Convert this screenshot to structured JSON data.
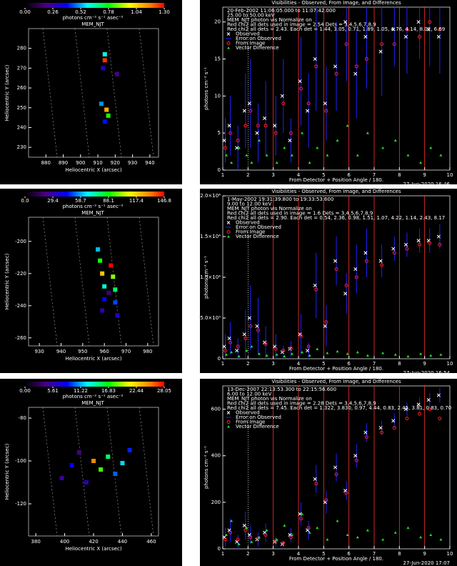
{
  "chart_data": [
    {
      "type": "heatmap",
      "title": "MEM_NJT",
      "colorbar_label": "photons cm⁻² s⁻¹ asec⁻²",
      "clim": [
        0,
        1.3
      ],
      "cticks": [
        {
          "value": 0,
          "label": "0.00"
        },
        {
          "value": 0.26,
          "label": "0.26"
        },
        {
          "value": 0.52,
          "label": "0.52"
        },
        {
          "value": 0.78,
          "label": "0.78"
        },
        {
          "value": 1.04,
          "label": "1.04"
        },
        {
          "value": 1.3,
          "label": "1.30"
        }
      ],
      "xlabel": "Heliocentric X (arcsec)",
      "ylabel": "Heliocentric Y (arcsec)",
      "xlim": [
        870,
        945
      ],
      "xticks": [
        880,
        890,
        900,
        910,
        920,
        930,
        940
      ],
      "ylim": [
        225,
        290
      ],
      "yticks": [
        230,
        240,
        250,
        260,
        270,
        280
      ],
      "x": [
        914,
        914,
        913,
        915,
        916,
        914,
        912,
        921
      ],
      "y": [
        274,
        277,
        270,
        249,
        246,
        243,
        252,
        267
      ],
      "values": [
        1.25,
        0.6,
        0.3,
        1.1,
        0.8,
        0.4,
        0.5,
        0.2
      ]
    },
    {
      "type": "scatter",
      "title": "Visibilities - Observed, From Image, and Differences",
      "annotations": [
        "20-Feb-2002 11:06:05.000 to 11:07:42.000",
        "25.00 to 50.00 keV",
        "MEM_NJT photon vis     Normalize on",
        "Red chi2 all dets used in image = 2.54   Dets = 3,4,5,6,7,8,9",
        "Red chi2 all dets = 2.43.   Each det = 1.44, 3.05, 0.71, 1.89, 1.05, 4.76, 4.14, 8.01, 6.69"
      ],
      "xlabel": "From Detector + Position Angle / 180.",
      "ylabel": "photons cm⁻² s⁻¹",
      "footer": "27-Jun-2020 16:46",
      "xlim": [
        1,
        10
      ],
      "xticks": [
        1,
        2,
        3,
        4,
        5,
        6,
        7,
        8,
        9,
        10
      ],
      "ylim": [
        0,
        22
      ],
      "yticks": [
        0,
        5,
        10,
        15,
        20
      ],
      "vlines": [
        3,
        4,
        5,
        6,
        7,
        8,
        9
      ],
      "vline_color": "#ff3030",
      "dotted_x": 2,
      "x": [
        1.1,
        1.3,
        1.6,
        1.9,
        2.1,
        2.4,
        2.7,
        3.1,
        3.4,
        3.7,
        4.1,
        4.4,
        4.7,
        5.1,
        5.5,
        5.9,
        6.3,
        6.7,
        7.3,
        7.8,
        8.3,
        8.8,
        9.2,
        9.6
      ],
      "series": [
        {
          "name": "Observed",
          "color": "#ffffff",
          "error_name": "Error on Observed",
          "error_color": "#2020ff",
          "values": [
            4,
            6,
            3,
            8,
            9,
            5,
            7,
            6,
            10,
            4,
            12,
            8,
            15,
            9,
            14,
            20,
            13,
            18,
            16,
            19,
            18,
            20,
            19,
            18
          ],
          "errors": [
            3,
            4,
            3,
            5,
            6,
            4,
            5,
            4,
            5,
            3,
            6,
            5,
            7,
            5,
            6,
            8,
            6,
            7,
            6,
            5,
            5,
            5,
            5,
            5
          ]
        },
        {
          "name": "From Image",
          "color": "#ff2020",
          "values": [
            3,
            5,
            4,
            6,
            8,
            6,
            6,
            5,
            9,
            5,
            11,
            9,
            14,
            8,
            13,
            17,
            14,
            15,
            17,
            17,
            19,
            18,
            20,
            19
          ]
        },
        {
          "name": "Vector Difference",
          "color": "#20e020",
          "values": [
            2,
            1,
            3,
            2,
            1,
            4,
            2,
            1,
            3,
            2,
            5,
            1,
            3,
            2,
            4,
            6,
            2,
            5,
            3,
            4,
            2,
            1,
            3,
            2
          ]
        }
      ]
    },
    {
      "type": "heatmap",
      "title": "MEM_NJT",
      "colorbar_label": "photons cm⁻² s⁻¹ asec⁻²",
      "clim": [
        0,
        146.8
      ],
      "cticks": [
        {
          "value": 0,
          "label": "0.0"
        },
        29.4,
        58.7,
        88.1,
        117.4,
        146.8
      ],
      "xlabel": "Heliocentric X (arcsec)",
      "ylabel": "Heliocentric Y (arcsec)",
      "xlim": [
        925,
        985
      ],
      "xticks": [
        930,
        940,
        950,
        960,
        970,
        980
      ],
      "ylim": [
        -265,
        -185
      ],
      "yticks": [
        -260,
        -240,
        -220,
        -200
      ],
      "x": [
        957,
        958,
        959,
        960,
        960,
        959,
        963,
        964,
        965,
        965,
        966,
        962
      ],
      "y": [
        -205,
        -212,
        -220,
        -228,
        -236,
        -243,
        -215,
        -222,
        -230,
        -238,
        -246,
        -232
      ],
      "values": [
        60,
        90,
        120,
        70,
        40,
        30,
        146.8,
        100,
        80,
        50,
        35,
        20
      ]
    },
    {
      "type": "scatter",
      "title": "Visibilities - Observed, From Image, and Differences",
      "annotations": [
        "1-May-2002 19:31:39.800 to 19:33:53.600",
        "9.00 to 12.00 keV",
        "MEM_NJT photon vis     Normalize on",
        "Red chi2 all dets used in image = 1.6   Dets = 3,4,5,6,7,8,9",
        "Red chi2 all dets = 2.90.   Each det = 0.54, 2.36, 0.98, 1.51, 1.07, 4.22, 1.14, 2.43, 8.17"
      ],
      "xlabel": "From Detector + Position Angle / 180.",
      "ylabel": "photons cm⁻² s⁻¹",
      "footer": "27-Jun-2020 16:54",
      "xlim": [
        1,
        10
      ],
      "xticks": [
        1,
        2,
        3,
        4,
        5,
        6,
        7,
        8,
        9,
        10
      ],
      "ylim": [
        0,
        20000
      ],
      "yticks": [
        0,
        {
          "value": 5000,
          "label": "5.0×10³"
        },
        {
          "value": 10000,
          "label": "1.0×10⁴"
        },
        {
          "value": 15000,
          "label": "1.5×10⁴"
        },
        {
          "value": 20000,
          "label": "2.0×10⁴"
        }
      ],
      "vlines": [
        3,
        4,
        5,
        6,
        7,
        8,
        9
      ],
      "vline_color": "#ff3030",
      "dotted_x": 2,
      "x": [
        1.1,
        1.3,
        1.6,
        1.9,
        2.1,
        2.4,
        2.7,
        3.1,
        3.4,
        3.7,
        4.1,
        4.4,
        4.7,
        5.1,
        5.5,
        5.9,
        6.3,
        6.7,
        7.3,
        7.8,
        8.3,
        8.8,
        9.2,
        9.6
      ],
      "series": [
        {
          "name": "Observed",
          "color": "#ffffff",
          "error_name": "Error on Observed",
          "error_color": "#2020ff",
          "values": [
            1500,
            2500,
            1000,
            3000,
            5000,
            4000,
            2000,
            1500,
            800,
            1200,
            3000,
            1000,
            9000,
            4000,
            12000,
            8000,
            11000,
            13000,
            12000,
            13500,
            14000,
            14500,
            14500,
            15000
          ],
          "errors": [
            1500,
            2000,
            1500,
            3000,
            4000,
            3500,
            2000,
            1500,
            800,
            1000,
            2500,
            1000,
            4000,
            2500,
            3000,
            2500,
            3000,
            3000,
            2000,
            1500,
            1500,
            1500,
            1500,
            1500
          ]
        },
        {
          "name": "From Image",
          "color": "#ff2020",
          "values": [
            1000,
            2000,
            1500,
            2500,
            4000,
            3500,
            1800,
            1200,
            1000,
            1300,
            2800,
            1500,
            8500,
            4500,
            11000,
            9000,
            10000,
            12000,
            11500,
            13000,
            13500,
            14000,
            14200,
            14000
          ]
        },
        {
          "name": "Vector Difference",
          "color": "#20e020",
          "values": [
            500,
            800,
            300,
            1000,
            1500,
            600,
            400,
            500,
            300,
            600,
            800,
            400,
            1200,
            700,
            900,
            600,
            800,
            400,
            700,
            500,
            300,
            600,
            400,
            500
          ]
        }
      ]
    },
    {
      "type": "heatmap",
      "title": "MEM_NJT",
      "colorbar_label": "photons cm⁻² s⁻¹ asec⁻²",
      "clim": [
        0,
        28.05
      ],
      "cticks": [
        {
          "value": 0,
          "label": "0.00"
        },
        5.61,
        11.22,
        16.83,
        22.44,
        28.05
      ],
      "xlabel": "Heliocentric X (arcsec)",
      "ylabel": "Heliocentric Y (arcsec)",
      "xlim": [
        375,
        465
      ],
      "xticks": [
        380,
        400,
        420,
        440,
        460
      ],
      "ylim": [
        -135,
        -75
      ],
      "yticks": [
        -80,
        -100,
        -120
      ],
      "x": [
        420,
        405,
        430,
        440,
        398,
        415,
        435,
        445,
        425,
        410
      ],
      "y": [
        -100,
        -102,
        -98,
        -101,
        -108,
        -110,
        -106,
        -95,
        -104,
        -96
      ],
      "values": [
        25,
        8,
        15,
        12,
        5,
        6,
        10,
        9,
        18,
        4
      ]
    },
    {
      "type": "scatter",
      "title": "Visibilities - Observed, From Image, and Differences",
      "annotations": [
        "13-Dec-2007 22:13:53.300 to 22:15:56.600",
        "6.00 to 12.00 keV",
        "MEM_NJT photon vis     Normalize on",
        "Red chi2 all dets used in image = 2.28   Dets = 3,4,5,6,7,8,9",
        "Red chi2 all dets = 7.45.   Each det = 1.322, 3.830, 0.97, 4.44, 0.83, 2.45, 3.81, 0.83, 0.70"
      ],
      "xlabel": "From Detector + Position Angle / 180.",
      "ylabel": "photons cm⁻² s⁻¹",
      "footer": "27-Jun-2020 17:07",
      "xlim": [
        1,
        10
      ],
      "xticks": [
        1,
        2,
        3,
        4,
        5,
        6,
        7,
        8,
        9,
        10
      ],
      "ylim": [
        0,
        700
      ],
      "yticks": [
        0,
        200,
        400,
        600
      ],
      "vlines": [
        3,
        4,
        5,
        6,
        7,
        8,
        9
      ],
      "vline_color": "#ff3030",
      "dotted_x": 2,
      "x": [
        1.1,
        1.3,
        1.6,
        1.9,
        2.1,
        2.4,
        2.7,
        3.1,
        3.4,
        3.7,
        4.1,
        4.4,
        4.7,
        5.1,
        5.5,
        5.9,
        6.3,
        6.7,
        7.3,
        7.8,
        8.3,
        8.8,
        9.2,
        9.6
      ],
      "series": [
        {
          "name": "Observed",
          "color": "#ffffff",
          "error_name": "Error on Observed",
          "error_color": "#2020ff",
          "values": [
            50,
            80,
            30,
            100,
            60,
            40,
            70,
            30,
            20,
            60,
            150,
            80,
            300,
            200,
            350,
            250,
            400,
            500,
            520,
            550,
            600,
            620,
            640,
            660
          ],
          "errors": [
            40,
            50,
            30,
            60,
            40,
            30,
            40,
            20,
            15,
            30,
            50,
            40,
            60,
            50,
            60,
            40,
            50,
            40,
            30,
            30,
            30,
            30,
            30,
            30
          ]
        },
        {
          "name": "From Image",
          "color": "#ff2020",
          "values": [
            40,
            70,
            40,
            80,
            50,
            45,
            60,
            35,
            25,
            50,
            130,
            90,
            280,
            210,
            320,
            240,
            380,
            480,
            500,
            520,
            560,
            580,
            600,
            560
          ]
        },
        {
          "name": "Vector Difference",
          "color": "#20e020",
          "values": [
            60,
            120,
            20,
            90,
            30,
            50,
            80,
            40,
            100,
            60,
            150,
            70,
            90,
            40,
            120,
            60,
            50,
            80,
            40,
            70,
            90,
            50,
            60,
            40
          ]
        }
      ]
    }
  ]
}
